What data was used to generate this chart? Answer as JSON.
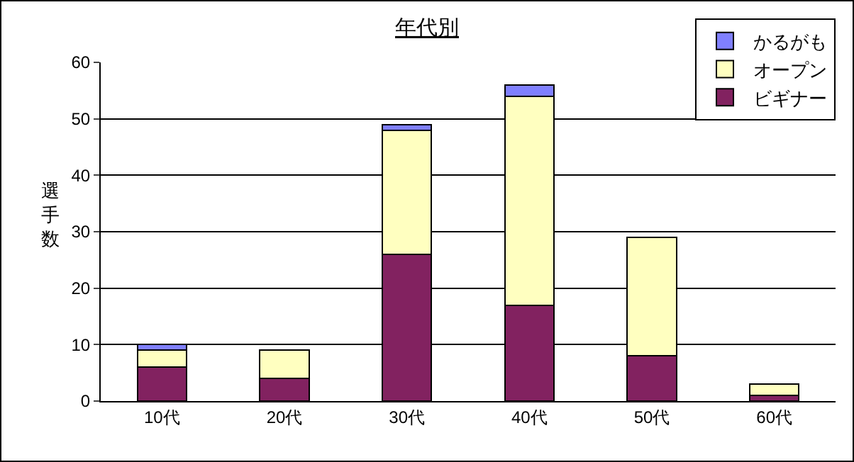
{
  "chart_data": {
    "type": "bar",
    "stacked": true,
    "title": "年代別",
    "ylabel": "選手数",
    "categories": [
      "10代",
      "20代",
      "30代",
      "40代",
      "50代",
      "60代"
    ],
    "series": [
      {
        "name": "ビギナー",
        "color": "#822260",
        "values": [
          6,
          4,
          26,
          17,
          8,
          1
        ]
      },
      {
        "name": "オープン",
        "color": "#ffffc0",
        "values": [
          3,
          5,
          22,
          37,
          21,
          2
        ]
      },
      {
        "name": "かるがも",
        "color": "#8080ff",
        "values": [
          1,
          0,
          1,
          2,
          0,
          0
        ]
      }
    ],
    "ylim": [
      0,
      60
    ],
    "yticks": [
      0,
      10,
      20,
      30,
      40,
      50,
      60
    ],
    "grid": "y",
    "legend": "top right"
  }
}
